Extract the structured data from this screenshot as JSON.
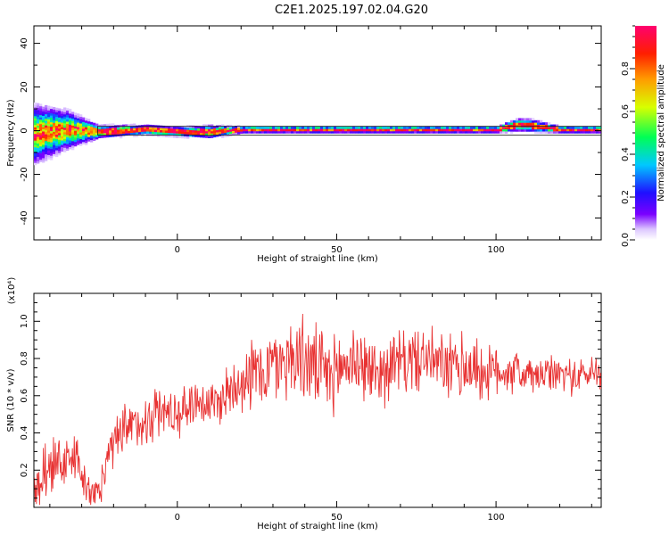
{
  "title": "C2E1.2025.197.02.04.G20",
  "chart_data": [
    {
      "type": "heatmap",
      "xlabel": "Height of straight line (km)",
      "ylabel": "Frequency (Hz)",
      "xlim": [
        -45,
        133
      ],
      "ylim": [
        -50,
        48
      ],
      "xticks": [
        0,
        50,
        100
      ],
      "xtick_labels": [
        "0",
        "50",
        "100"
      ],
      "yticks": [
        -40,
        -20,
        0,
        20,
        40
      ],
      "ytick_labels": [
        "-40",
        "-20",
        "0",
        "20",
        "40"
      ],
      "colorbar": {
        "label": "Normalized spectral amplitude",
        "range": [
          0.0,
          1.0
        ],
        "ticks": [
          0.0,
          0.2,
          0.4,
          0.6,
          0.8
        ],
        "tick_labels": [
          "0.0",
          "0.2",
          "0.4",
          "0.6",
          "0.8"
        ],
        "colormap": "rainbow (white-violet-blue-cyan-green-yellow-red-magenta)"
      },
      "ridge": {
        "description": "dominant energy concentrated near 0 Hz; broadband spread below about -25 km",
        "x": [
          -45,
          -35,
          -25,
          -10,
          0,
          10,
          20,
          40,
          60,
          80,
          100,
          106,
          110,
          120,
          133
        ],
        "center_freq_hz": [
          -2,
          0,
          -1,
          0,
          -1,
          -1,
          0,
          0,
          0,
          0,
          0,
          2,
          2,
          0,
          0
        ],
        "halfwidth_hz": [
          9,
          6,
          2,
          1.5,
          1.5,
          2,
          1,
          1,
          1,
          1,
          1,
          2,
          2,
          1,
          1
        ]
      }
    },
    {
      "type": "line",
      "xlabel": "Height of straight line (km)",
      "ylabel": "SNR (10 * v/v)",
      "y_multiplier": "(x10⁴)",
      "xlim": [
        -45,
        133
      ],
      "ylim": [
        0,
        1.15
      ],
      "xticks": [
        0,
        50,
        100
      ],
      "xtick_labels": [
        "0",
        "50",
        "100"
      ],
      "yticks": [
        0.2,
        0.4,
        0.6,
        0.8,
        1.0
      ],
      "ytick_labels": [
        "0.2",
        "0.4",
        "0.6",
        "0.8",
        "1.0"
      ],
      "color": "#e83232",
      "series": [
        {
          "x": [
            -45,
            -40,
            -35,
            -32,
            -28,
            -25,
            -22,
            -18,
            -12,
            -6,
            0,
            6,
            12,
            20,
            26,
            32,
            38,
            43,
            48,
            55,
            62,
            70,
            78,
            86,
            91,
            97,
            104,
            112,
            120,
            126,
            133
          ],
          "y": [
            0.08,
            0.28,
            0.22,
            0.3,
            0.08,
            0.05,
            0.25,
            0.38,
            0.45,
            0.52,
            0.5,
            0.58,
            0.55,
            0.7,
            0.72,
            0.78,
            0.82,
            0.75,
            0.7,
            0.8,
            0.72,
            0.78,
            0.8,
            0.74,
            0.76,
            0.72,
            0.74,
            0.7,
            0.72,
            0.7,
            0.74
          ],
          "noise_amplitude": [
            0.18,
            0.2,
            0.2,
            0.18,
            0.12,
            0.1,
            0.16,
            0.18,
            0.18,
            0.18,
            0.15,
            0.16,
            0.16,
            0.22,
            0.25,
            0.25,
            0.28,
            0.28,
            0.25,
            0.25,
            0.22,
            0.22,
            0.2,
            0.22,
            0.25,
            0.18,
            0.16,
            0.12,
            0.12,
            0.12,
            0.12
          ]
        }
      ]
    }
  ]
}
